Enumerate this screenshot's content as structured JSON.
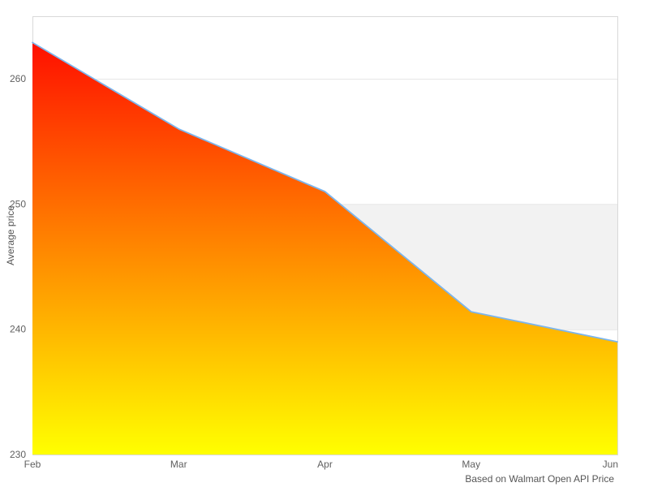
{
  "chart_data": {
    "type": "area",
    "title": "",
    "categories": [
      "Feb",
      "Mar",
      "Apr",
      "May",
      "Jun"
    ],
    "values": [
      262.9,
      256.0,
      251.0,
      241.4,
      239.0
    ],
    "xlabel": "",
    "ylabel": "Average price",
    "ylim": [
      230,
      265
    ],
    "yticks": [
      230,
      240,
      250,
      260
    ],
    "grid": true,
    "legend": false,
    "plot_band": {
      "from": 240,
      "to": 250,
      "color": "#f2f2f2"
    },
    "credits": "Based on Walmart Open API Price",
    "colors": {
      "line": "#7cb5ec",
      "area_gradient_top": "#ff0000",
      "area_gradient_bottom": "#ffff00",
      "gridline": "#e6e6e6",
      "plot_border": "#d9d9d9",
      "tick_label": "#606060",
      "axis_title": "#555555",
      "credits_text": "#555555"
    }
  }
}
